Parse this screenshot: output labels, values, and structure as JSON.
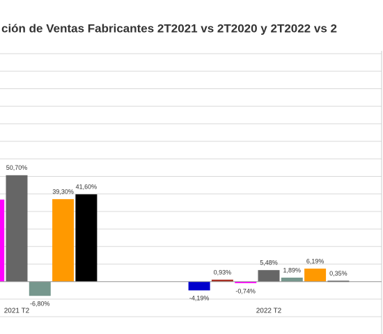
{
  "chart_data": {
    "type": "bar",
    "title": "ción de Ventas Fabricantes 2T2021 vs 2T2020 y 2T2022 vs 2",
    "categories": [
      "2021 T2",
      "2022 T2"
    ],
    "ylim": [
      -20,
      110
    ],
    "grid": true,
    "series": [
      {
        "color": "#0000cc",
        "values": [
          null,
          -4.19
        ],
        "value_labels": [
          null,
          "-4,19%"
        ]
      },
      {
        "color": "#a93226",
        "values": [
          null,
          0.93
        ],
        "value_labels": [
          null,
          "0,93%"
        ]
      },
      {
        "color": "#ff00ff",
        "values": [
          39.1,
          -0.74
        ],
        "value_labels": [
          "%",
          "-0,74%"
        ]
      },
      {
        "color": "#666666",
        "values": [
          50.7,
          5.48
        ],
        "value_labels": [
          "50,70%",
          "5,48%"
        ]
      },
      {
        "color": "#76978d",
        "values": [
          -6.8,
          1.89
        ],
        "value_labels": [
          "-6,80%",
          "1,89%"
        ]
      },
      {
        "color": "#ff9900",
        "values": [
          39.3,
          6.19
        ],
        "value_labels": [
          "39,30%",
          "6,19%"
        ]
      },
      {
        "color": "#000000",
        "values": [
          41.6,
          0.35
        ],
        "value_labels": [
          "41,60%",
          "0,35%"
        ]
      }
    ]
  }
}
